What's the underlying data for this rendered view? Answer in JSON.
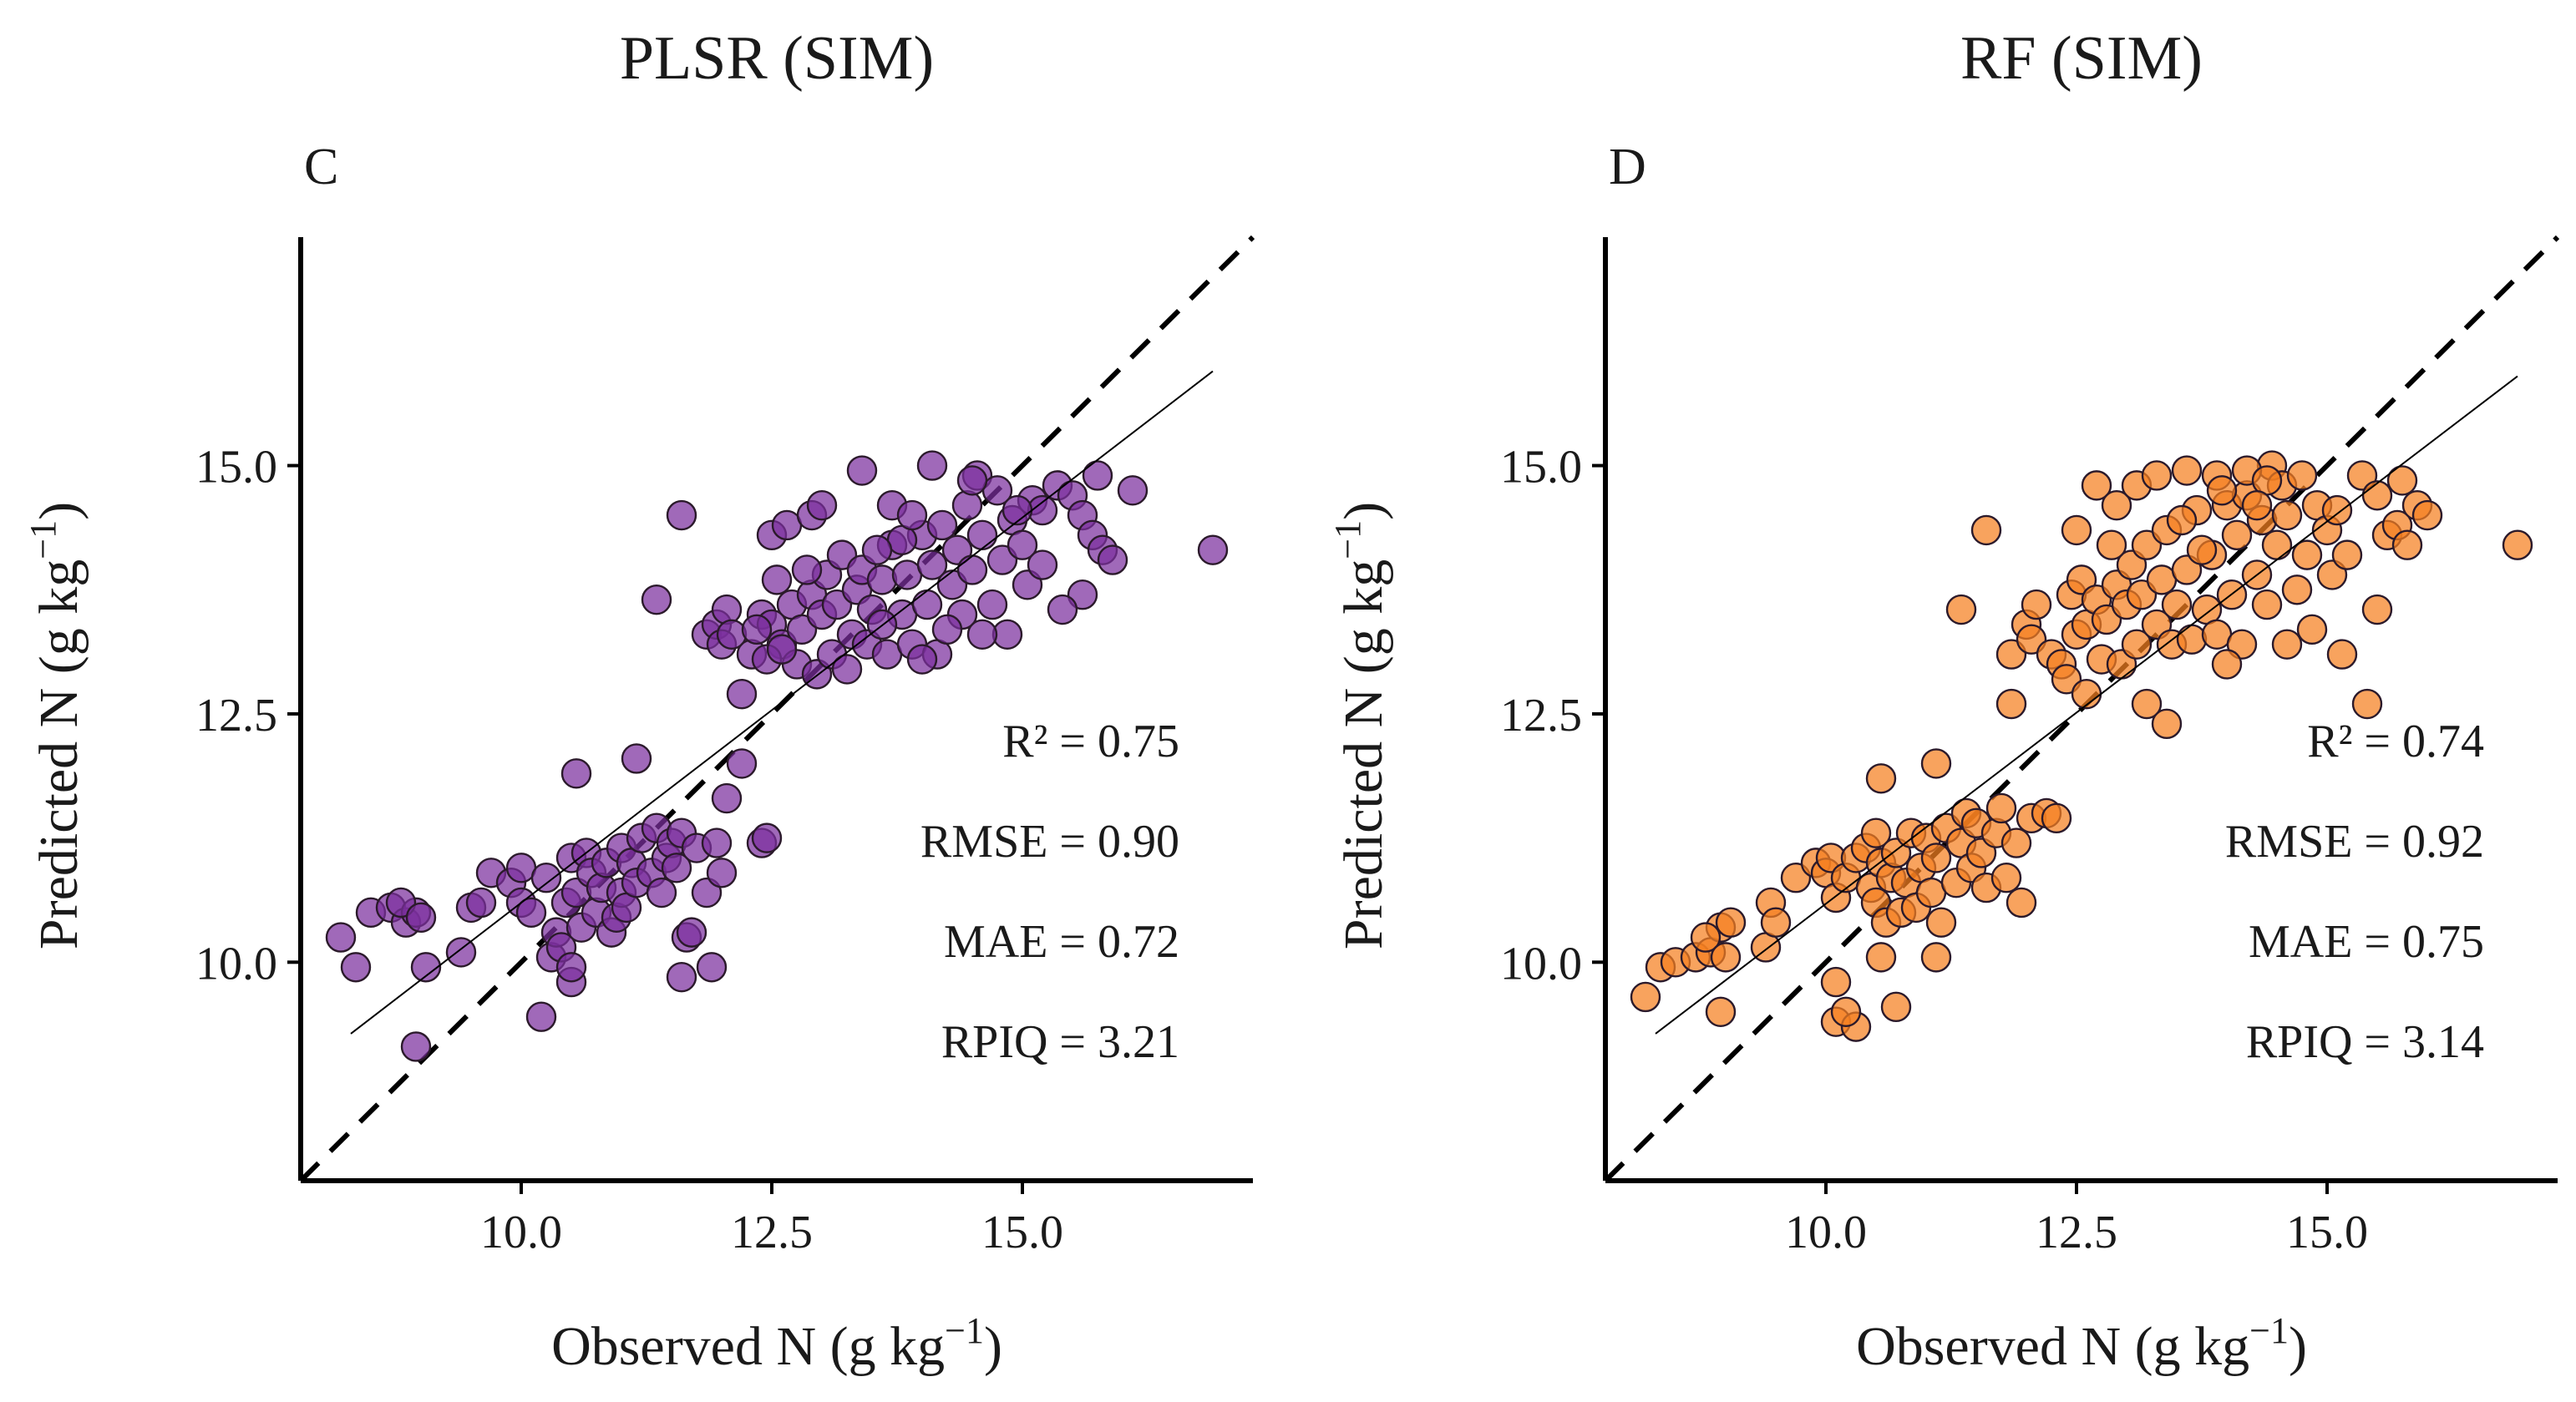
{
  "chart_data": [
    {
      "type": "scatter",
      "panel": "C",
      "title": "PLSR (SIM)",
      "xlabel": "Observed N (g kg",
      "ylabel": "Predicted N (g kg",
      "label_superscript": "−1",
      "label_close": ")",
      "xlim": [
        7.8,
        17.3
      ],
      "ylim": [
        7.8,
        17.3
      ],
      "xticks": [
        "10.0",
        "12.5",
        "15.0"
      ],
      "yticks": [
        "10.0",
        "12.5",
        "15.0"
      ],
      "marker_color": "#7b2f9e",
      "fit_line": {
        "x": [
          8.3,
          16.9
        ],
        "y": [
          9.28,
          15.95
        ]
      },
      "stats": [
        "R² = 0.75",
        "RMSE = 0.90",
        "MAE = 0.72",
        "RPIQ = 3.21"
      ],
      "points": [
        [
          8.2,
          10.25
        ],
        [
          8.35,
          9.95
        ],
        [
          8.5,
          10.5
        ],
        [
          8.7,
          10.55
        ],
        [
          8.85,
          10.4
        ],
        [
          8.95,
          10.5
        ],
        [
          8.8,
          10.6
        ],
        [
          9.0,
          10.45
        ],
        [
          9.05,
          9.95
        ],
        [
          8.95,
          9.15
        ],
        [
          9.4,
          10.1
        ],
        [
          9.5,
          10.55
        ],
        [
          9.6,
          10.6
        ],
        [
          9.7,
          10.9
        ],
        [
          9.9,
          10.8
        ],
        [
          10.0,
          10.6
        ],
        [
          10.0,
          10.95
        ],
        [
          10.1,
          10.5
        ],
        [
          10.25,
          10.85
        ],
        [
          10.3,
          10.05
        ],
        [
          10.35,
          10.3
        ],
        [
          10.4,
          10.15
        ],
        [
          10.45,
          10.6
        ],
        [
          10.5,
          9.8
        ],
        [
          10.5,
          9.95
        ],
        [
          10.5,
          11.05
        ],
        [
          10.55,
          10.7
        ],
        [
          10.6,
          10.35
        ],
        [
          10.65,
          11.1
        ],
        [
          10.7,
          10.9
        ],
        [
          10.75,
          10.5
        ],
        [
          10.8,
          10.75
        ],
        [
          10.85,
          11.0
        ],
        [
          10.9,
          10.3
        ],
        [
          10.95,
          10.45
        ],
        [
          11.0,
          10.7
        ],
        [
          11.0,
          11.15
        ],
        [
          11.05,
          10.55
        ],
        [
          11.1,
          11.0
        ],
        [
          11.15,
          10.8
        ],
        [
          11.2,
          11.25
        ],
        [
          11.3,
          10.9
        ],
        [
          11.35,
          11.35
        ],
        [
          11.4,
          10.7
        ],
        [
          11.45,
          11.05
        ],
        [
          11.5,
          11.2
        ],
        [
          11.55,
          10.95
        ],
        [
          11.6,
          11.3
        ],
        [
          11.65,
          10.25
        ],
        [
          11.6,
          9.85
        ],
        [
          11.7,
          10.3
        ],
        [
          11.75,
          11.15
        ],
        [
          11.85,
          10.7
        ],
        [
          11.9,
          9.95
        ],
        [
          11.95,
          11.2
        ],
        [
          12.0,
          10.9
        ],
        [
          12.05,
          11.65
        ],
        [
          12.2,
          12.0
        ],
        [
          12.4,
          11.2
        ],
        [
          12.45,
          11.25
        ],
        [
          10.2,
          9.45
        ],
        [
          10.55,
          11.9
        ],
        [
          11.15,
          12.05
        ],
        [
          11.35,
          13.65
        ],
        [
          11.6,
          14.5
        ],
        [
          11.85,
          13.3
        ],
        [
          11.95,
          13.4
        ],
        [
          12.0,
          13.2
        ],
        [
          12.05,
          13.55
        ],
        [
          12.1,
          13.3
        ],
        [
          12.2,
          12.7
        ],
        [
          12.3,
          13.1
        ],
        [
          12.4,
          13.5
        ],
        [
          12.5,
          13.4
        ],
        [
          12.55,
          13.85
        ],
        [
          12.6,
          13.2
        ],
        [
          12.7,
          13.6
        ],
        [
          12.75,
          13.0
        ],
        [
          12.8,
          13.35
        ],
        [
          12.9,
          13.7
        ],
        [
          12.95,
          12.9
        ],
        [
          13.0,
          13.5
        ],
        [
          13.05,
          13.9
        ],
        [
          13.1,
          13.1
        ],
        [
          13.15,
          13.6
        ],
        [
          13.2,
          14.1
        ],
        [
          13.3,
          13.3
        ],
        [
          13.35,
          13.75
        ],
        [
          13.4,
          13.95
        ],
        [
          13.45,
          13.2
        ],
        [
          13.5,
          13.55
        ],
        [
          13.6,
          13.85
        ],
        [
          13.65,
          13.1
        ],
        [
          13.7,
          14.2
        ],
        [
          13.8,
          13.5
        ],
        [
          13.85,
          13.9
        ],
        [
          13.9,
          13.2
        ],
        [
          14.0,
          14.3
        ],
        [
          14.05,
          13.6
        ],
        [
          14.1,
          14.0
        ],
        [
          14.15,
          13.1
        ],
        [
          14.2,
          14.4
        ],
        [
          14.3,
          13.8
        ],
        [
          14.35,
          14.15
        ],
        [
          14.4,
          13.5
        ],
        [
          14.45,
          14.6
        ],
        [
          14.5,
          13.95
        ],
        [
          14.55,
          14.9
        ],
        [
          14.6,
          14.3
        ],
        [
          14.7,
          13.6
        ],
        [
          14.75,
          14.75
        ],
        [
          14.8,
          14.05
        ],
        [
          14.85,
          13.3
        ],
        [
          14.9,
          14.45
        ],
        [
          15.0,
          14.2
        ],
        [
          15.05,
          13.8
        ],
        [
          15.1,
          14.65
        ],
        [
          15.2,
          14.0
        ],
        [
          15.35,
          14.8
        ],
        [
          15.5,
          14.7
        ],
        [
          15.6,
          14.5
        ],
        [
          15.7,
          14.3
        ],
        [
          15.75,
          14.9
        ],
        [
          15.8,
          14.15
        ],
        [
          15.9,
          14.05
        ],
        [
          15.6,
          13.7
        ],
        [
          15.4,
          13.55
        ],
        [
          16.1,
          14.75
        ],
        [
          16.9,
          14.15
        ],
        [
          13.4,
          14.95
        ],
        [
          12.5,
          14.3
        ],
        [
          12.65,
          14.4
        ],
        [
          12.9,
          14.5
        ],
        [
          13.0,
          14.6
        ],
        [
          14.1,
          15.0
        ],
        [
          14.5,
          14.85
        ],
        [
          13.8,
          14.25
        ],
        [
          13.7,
          14.6
        ],
        [
          12.35,
          13.35
        ],
        [
          12.45,
          13.05
        ],
        [
          13.25,
          12.95
        ],
        [
          13.6,
          13.4
        ],
        [
          14.0,
          13.05
        ],
        [
          13.9,
          14.5
        ],
        [
          14.25,
          13.35
        ],
        [
          14.6,
          13.3
        ],
        [
          15.2,
          14.55
        ],
        [
          14.95,
          14.55
        ],
        [
          13.55,
          14.15
        ],
        [
          12.85,
          13.95
        ],
        [
          12.6,
          13.15
        ]
      ]
    },
    {
      "type": "scatter",
      "panel": "D",
      "title": "RF (SIM)",
      "xlabel": "Observed N (g kg",
      "ylabel": "Predicted N (g kg",
      "label_superscript": "−1",
      "label_close": ")",
      "xlim": [
        7.8,
        17.3
      ],
      "ylim": [
        7.8,
        17.3
      ],
      "xticks": [
        "10.0",
        "12.5",
        "15.0"
      ],
      "yticks": [
        "10.0",
        "12.5",
        "15.0"
      ],
      "marker_color": "#f57f20",
      "fit_line": {
        "x": [
          8.3,
          16.9
        ],
        "y": [
          9.28,
          15.9
        ]
      },
      "stats": [
        "R² = 0.74",
        "RMSE = 0.92",
        "MAE = 0.75",
        "RPIQ = 3.14"
      ],
      "points": [
        [
          8.2,
          9.65
        ],
        [
          8.35,
          9.95
        ],
        [
          8.5,
          10.0
        ],
        [
          8.7,
          10.05
        ],
        [
          8.85,
          10.1
        ],
        [
          8.95,
          10.35
        ],
        [
          8.8,
          10.25
        ],
        [
          9.0,
          10.05
        ],
        [
          9.05,
          10.4
        ],
        [
          8.95,
          9.5
        ],
        [
          9.4,
          10.15
        ],
        [
          9.45,
          10.6
        ],
        [
          9.5,
          10.4
        ],
        [
          9.7,
          10.85
        ],
        [
          9.9,
          11.0
        ],
        [
          10.0,
          10.9
        ],
        [
          10.05,
          11.05
        ],
        [
          10.1,
          10.65
        ],
        [
          10.2,
          10.85
        ],
        [
          10.1,
          9.8
        ],
        [
          10.3,
          11.05
        ],
        [
          10.4,
          11.15
        ],
        [
          10.45,
          10.75
        ],
        [
          10.5,
          10.6
        ],
        [
          10.5,
          11.3
        ],
        [
          10.55,
          11.0
        ],
        [
          10.6,
          10.4
        ],
        [
          10.65,
          10.85
        ],
        [
          10.7,
          11.1
        ],
        [
          10.75,
          10.5
        ],
        [
          10.8,
          10.8
        ],
        [
          10.85,
          11.3
        ],
        [
          10.9,
          10.55
        ],
        [
          10.95,
          10.95
        ],
        [
          11.0,
          11.25
        ],
        [
          11.05,
          10.7
        ],
        [
          11.1,
          11.05
        ],
        [
          11.15,
          10.4
        ],
        [
          11.2,
          11.35
        ],
        [
          11.3,
          10.8
        ],
        [
          11.35,
          11.2
        ],
        [
          11.4,
          11.5
        ],
        [
          11.45,
          10.95
        ],
        [
          11.5,
          11.4
        ],
        [
          11.55,
          11.1
        ],
        [
          11.6,
          10.75
        ],
        [
          11.7,
          11.3
        ],
        [
          11.75,
          11.55
        ],
        [
          11.8,
          10.85
        ],
        [
          11.9,
          11.2
        ],
        [
          11.95,
          10.6
        ],
        [
          12.05,
          11.45
        ],
        [
          12.2,
          11.5
        ],
        [
          12.3,
          11.45
        ],
        [
          10.1,
          9.4
        ],
        [
          10.3,
          9.35
        ],
        [
          10.2,
          9.5
        ],
        [
          10.55,
          10.05
        ],
        [
          10.7,
          9.55
        ],
        [
          11.1,
          10.05
        ],
        [
          11.1,
          12.0
        ],
        [
          10.55,
          11.85
        ],
        [
          11.35,
          13.55
        ],
        [
          11.6,
          14.35
        ],
        [
          11.85,
          12.6
        ],
        [
          11.85,
          13.1
        ],
        [
          12.0,
          13.4
        ],
        [
          12.05,
          13.25
        ],
        [
          12.1,
          13.6
        ],
        [
          12.25,
          13.1
        ],
        [
          12.35,
          13.0
        ],
        [
          12.45,
          13.7
        ],
        [
          12.5,
          13.3
        ],
        [
          12.55,
          13.85
        ],
        [
          12.6,
          13.4
        ],
        [
          12.7,
          13.65
        ],
        [
          12.75,
          13.05
        ],
        [
          12.8,
          13.45
        ],
        [
          12.9,
          13.8
        ],
        [
          12.95,
          13.0
        ],
        [
          13.0,
          13.6
        ],
        [
          13.05,
          14.0
        ],
        [
          13.1,
          13.2
        ],
        [
          13.15,
          13.7
        ],
        [
          13.2,
          14.2
        ],
        [
          13.3,
          13.4
        ],
        [
          13.35,
          13.85
        ],
        [
          13.4,
          14.35
        ],
        [
          13.45,
          13.2
        ],
        [
          13.5,
          13.6
        ],
        [
          13.6,
          13.95
        ],
        [
          13.65,
          13.25
        ],
        [
          13.7,
          14.55
        ],
        [
          13.8,
          13.55
        ],
        [
          13.85,
          14.1
        ],
        [
          13.9,
          13.3
        ],
        [
          14.0,
          14.6
        ],
        [
          14.05,
          13.7
        ],
        [
          14.1,
          14.3
        ],
        [
          14.15,
          13.2
        ],
        [
          14.2,
          14.7
        ],
        [
          14.3,
          13.9
        ],
        [
          14.35,
          14.45
        ],
        [
          14.4,
          13.6
        ],
        [
          14.45,
          15.0
        ],
        [
          14.5,
          14.2
        ],
        [
          14.55,
          14.8
        ],
        [
          14.6,
          14.5
        ],
        [
          14.7,
          13.75
        ],
        [
          14.75,
          14.9
        ],
        [
          14.8,
          14.1
        ],
        [
          14.85,
          13.35
        ],
        [
          14.9,
          14.6
        ],
        [
          15.0,
          14.35
        ],
        [
          15.05,
          13.9
        ],
        [
          15.1,
          14.55
        ],
        [
          15.2,
          14.1
        ],
        [
          15.35,
          14.9
        ],
        [
          15.5,
          14.7
        ],
        [
          15.6,
          14.3
        ],
        [
          15.7,
          14.4
        ],
        [
          15.75,
          14.85
        ],
        [
          15.8,
          14.2
        ],
        [
          15.9,
          14.6
        ],
        [
          15.5,
          13.55
        ],
        [
          15.4,
          12.6
        ],
        [
          16.0,
          14.5
        ],
        [
          16.9,
          14.2
        ],
        [
          12.5,
          14.35
        ],
        [
          12.7,
          14.8
        ],
        [
          12.9,
          14.6
        ],
        [
          13.1,
          14.8
        ],
        [
          13.3,
          14.9
        ],
        [
          13.6,
          14.95
        ],
        [
          13.9,
          14.9
        ],
        [
          14.2,
          14.95
        ],
        [
          14.4,
          14.85
        ],
        [
          13.2,
          12.6
        ],
        [
          13.4,
          12.4
        ],
        [
          12.4,
          12.85
        ],
        [
          12.6,
          12.7
        ],
        [
          14.0,
          13.0
        ],
        [
          14.6,
          13.2
        ],
        [
          15.15,
          13.1
        ],
        [
          13.55,
          14.45
        ],
        [
          13.75,
          14.15
        ],
        [
          13.95,
          14.75
        ],
        [
          14.3,
          14.6
        ],
        [
          12.85,
          14.2
        ]
      ]
    }
  ]
}
